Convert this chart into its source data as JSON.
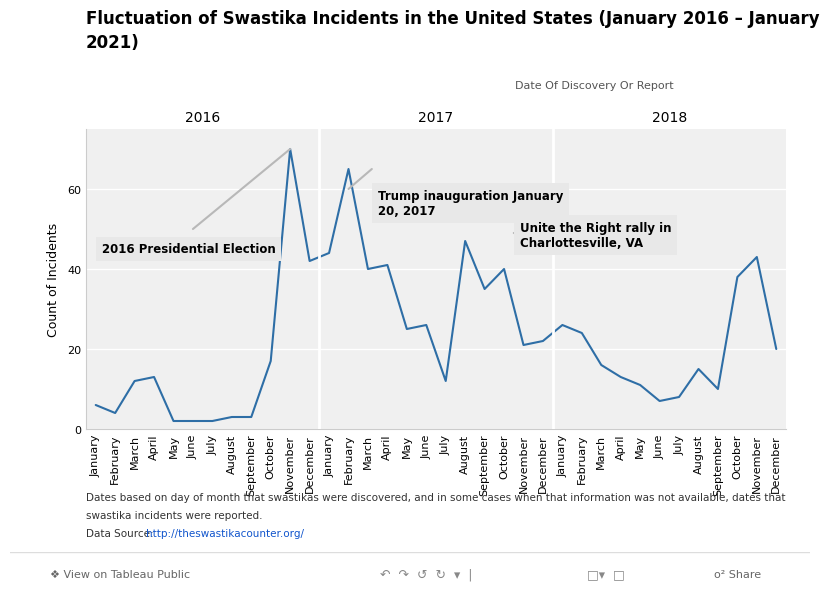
{
  "title_line1": "Fluctuation of Swastika Incidents in the United States (January 2016 – January",
  "title_line2": "2021)",
  "ylabel": "Count of Incidents",
  "xlabel_note": "Date Of Discovery Or Report",
  "year_labels": [
    "2016",
    "2017",
    "2018"
  ],
  "months": [
    "January",
    "February",
    "March",
    "April",
    "May",
    "June",
    "July",
    "August",
    "September",
    "October",
    "November",
    "December"
  ],
  "data_2016": [
    6,
    4,
    12,
    13,
    2,
    2,
    2,
    3,
    3,
    17,
    70,
    42
  ],
  "data_2017": [
    44,
    65,
    40,
    41,
    25,
    26,
    12,
    47,
    35,
    40,
    21,
    22
  ],
  "data_2018": [
    26,
    24,
    16,
    13,
    11,
    7,
    8,
    15,
    10,
    38,
    43,
    20
  ],
  "line_color": "#2e6ea6",
  "trend_color": "#b8b8b8",
  "bg_color": "#ffffff",
  "plot_bg": "#f0f0f0",
  "annotation_bg": "#e8e8e8",
  "yticks": [
    0,
    20,
    40,
    60
  ],
  "ylim": [
    0,
    75
  ],
  "footer_text1": "Dates based on day of month that swastikas were discovered, and in some cases when that information was not available, dates that",
  "footer_text2": "swastika incidents were reported.",
  "footer_source_prefix": "Data Source: ",
  "footer_source_url": "http://theswastikacounter.org/",
  "annotation1_text": "2016 Presidential Election",
  "annotation2_text": "Trump inauguration January\n20, 2017",
  "annotation3_text": "Unite the Right rally in\nCharlottesville, VA",
  "tableau_text": "❖ View on Tableau Public",
  "share_text": "o² Share"
}
